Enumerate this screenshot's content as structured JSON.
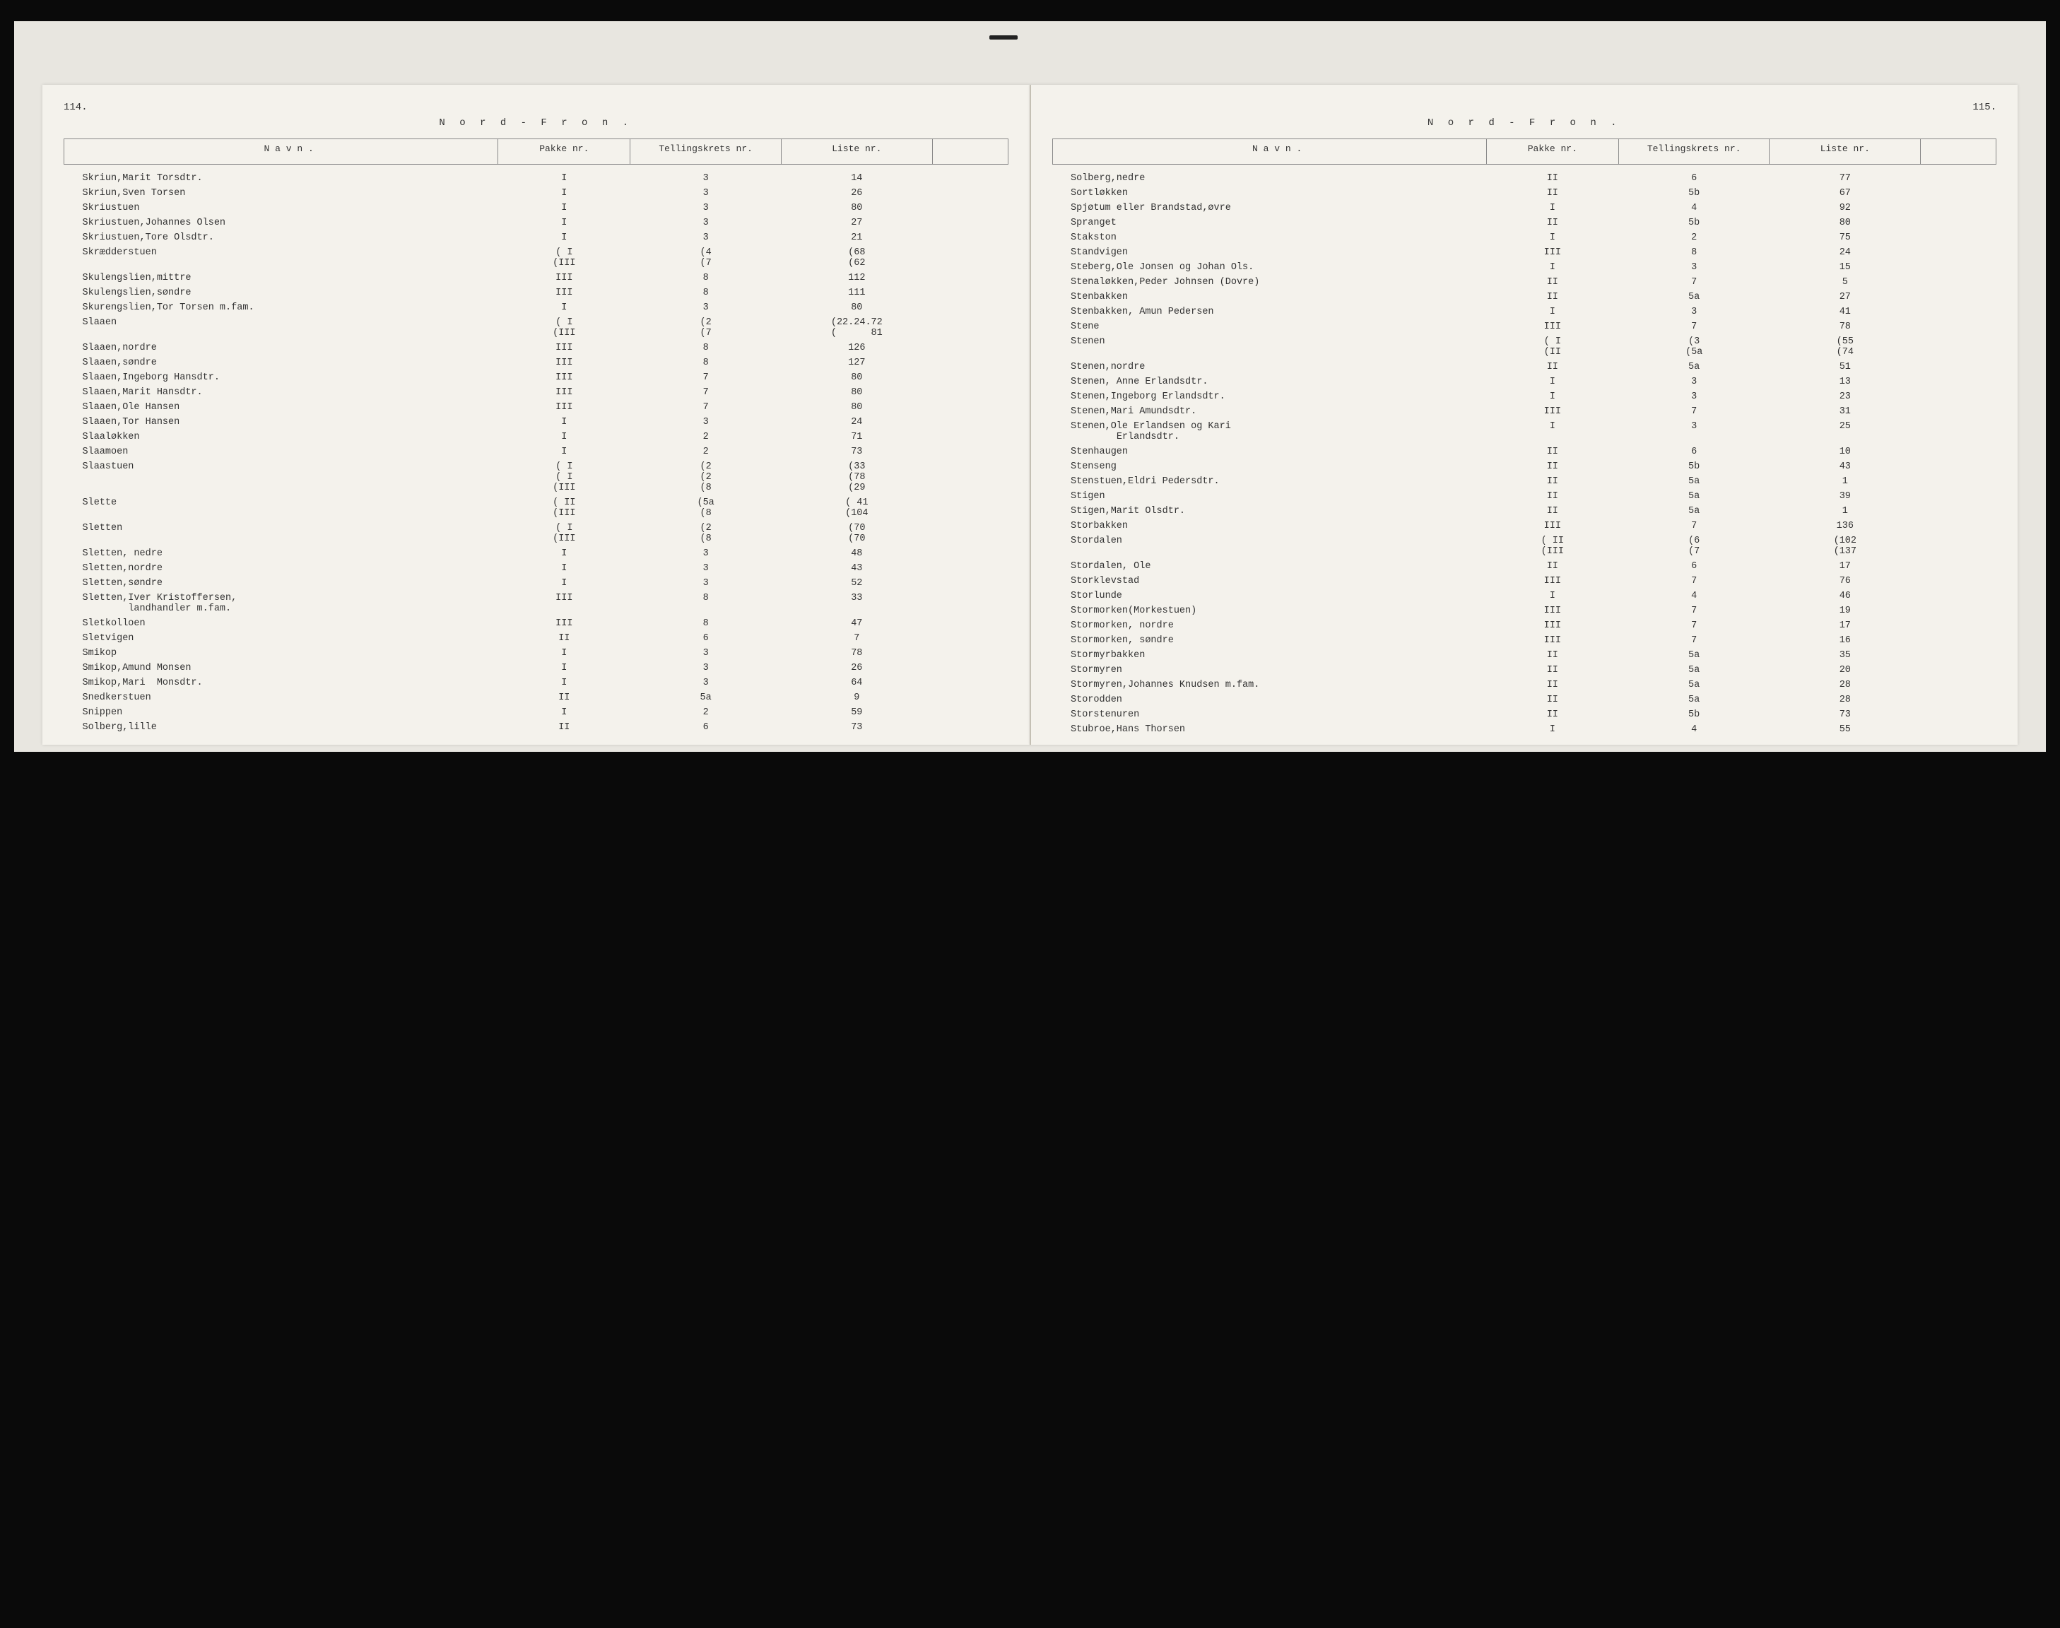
{
  "region_title": "N o r d - F r o n .",
  "headers": {
    "navn": "N a v n .",
    "pakke": "Pakke\nnr.",
    "krets": "Tellingskrets\nnr.",
    "liste": "Liste\nnr."
  },
  "left": {
    "page_number": "114.",
    "rows": [
      {
        "n": "Skriun,Marit Torsdtr.",
        "p": "I",
        "k": "3",
        "l": "14"
      },
      {
        "n": "Skriun,Sven Torsen",
        "p": "I",
        "k": "3",
        "l": "26"
      },
      {
        "n": "Skriustuen",
        "p": "I",
        "k": "3",
        "l": "80"
      },
      {
        "n": "Skriustuen,Johannes Olsen",
        "p": "I",
        "k": "3",
        "l": "27"
      },
      {
        "n": "Skriustuen,Tore Olsdtr.",
        "p": "I",
        "k": "3",
        "l": "21"
      },
      {
        "n": "Skrædderstuen",
        "p": "( I\n(III",
        "k": "(4\n(7",
        "l": "(68\n(62"
      },
      {
        "n": "Skulengslien,mittre",
        "p": "III",
        "k": "8",
        "l": "112"
      },
      {
        "n": "Skulengslien,søndre",
        "p": "III",
        "k": "8",
        "l": "111"
      },
      {
        "n": "Skurengslien,Tor Torsen m.fam.",
        "p": "I",
        "k": "3",
        "l": "80"
      },
      {
        "n": "Slaaen",
        "p": "( I\n(III",
        "k": "(2\n(7",
        "l": "(22.24.72\n(      81"
      },
      {
        "n": "Slaaen,nordre",
        "p": "III",
        "k": "8",
        "l": "126"
      },
      {
        "n": "Slaaen,søndre",
        "p": "III",
        "k": "8",
        "l": "127"
      },
      {
        "n": "Slaaen,Ingeborg Hansdtr.",
        "p": "III",
        "k": "7",
        "l": "80"
      },
      {
        "n": "Slaaen,Marit Hansdtr.",
        "p": "III",
        "k": "7",
        "l": "80"
      },
      {
        "n": "Slaaen,Ole Hansen",
        "p": "III",
        "k": "7",
        "l": "80"
      },
      {
        "n": "Slaaen,Tor Hansen",
        "p": "I",
        "k": "3",
        "l": "24"
      },
      {
        "n": "Slaaløkken",
        "p": "I",
        "k": "2",
        "l": "71"
      },
      {
        "n": "Slaamoen",
        "p": "I",
        "k": "2",
        "l": "73"
      },
      {
        "n": "Slaastuen",
        "p": "( I\n( I\n(III",
        "k": "(2\n(2\n(8",
        "l": "(33\n(78\n(29"
      },
      {
        "n": "Slette",
        "p": "( II\n(III",
        "k": "(5a\n(8",
        "l": "( 41\n(104"
      },
      {
        "n": "Sletten",
        "p": "( I\n(III",
        "k": "(2\n(8",
        "l": "(70\n(70"
      },
      {
        "n": "Sletten, nedre",
        "p": "I",
        "k": "3",
        "l": "48"
      },
      {
        "n": "Sletten,nordre",
        "p": "I",
        "k": "3",
        "l": "43"
      },
      {
        "n": "Sletten,søndre",
        "p": "I",
        "k": "3",
        "l": "52"
      },
      {
        "n": "Sletten,Iver Kristoffersen,\n        landhandler m.fam.",
        "p": "III",
        "k": "8",
        "l": "33"
      },
      {
        "n": "Sletkolloen",
        "p": "III",
        "k": "8",
        "l": "47"
      },
      {
        "n": "Sletvigen",
        "p": "II",
        "k": "6",
        "l": "7"
      },
      {
        "n": "Smikop",
        "p": "I",
        "k": "3",
        "l": "78"
      },
      {
        "n": "Smikop,Amund Monsen",
        "p": "I",
        "k": "3",
        "l": "26"
      },
      {
        "n": "Smikop,Mari  Monsdtr.",
        "p": "I",
        "k": "3",
        "l": "64"
      },
      {
        "n": "Snedkerstuen",
        "p": "II",
        "k": "5a",
        "l": "9"
      },
      {
        "n": "Snippen",
        "p": "I",
        "k": "2",
        "l": "59"
      },
      {
        "n": "Solberg,lille",
        "p": "II",
        "k": "6",
        "l": "73"
      }
    ]
  },
  "right": {
    "page_number": "115.",
    "rows": [
      {
        "n": "Solberg,nedre",
        "p": "II",
        "k": "6",
        "l": "77"
      },
      {
        "n": "Sortløkken",
        "p": "II",
        "k": "5b",
        "l": "67"
      },
      {
        "n": "Spjøtum eller Brandstad,øvre",
        "p": "I",
        "k": "4",
        "l": "92"
      },
      {
        "n": "Spranget",
        "p": "II",
        "k": "5b",
        "l": "80"
      },
      {
        "n": "Stakston",
        "p": "I",
        "k": "2",
        "l": "75"
      },
      {
        "n": "Standvigen",
        "p": "III",
        "k": "8",
        "l": "24"
      },
      {
        "n": "Steberg,Ole Jonsen og Johan Ols.",
        "p": "I",
        "k": "3",
        "l": "15"
      },
      {
        "n": "Stenaløkken,Peder Johnsen (Dovre)",
        "p": "II",
        "k": "7",
        "l": "5"
      },
      {
        "n": "Stenbakken",
        "p": "II",
        "k": "5a",
        "l": "27"
      },
      {
        "n": "Stenbakken, Amun Pedersen",
        "p": "I",
        "k": "3",
        "l": "41"
      },
      {
        "n": "Stene",
        "p": "III",
        "k": "7",
        "l": "78"
      },
      {
        "n": "Stenen",
        "p": "( I\n(II",
        "k": "(3\n(5a",
        "l": "(55\n(74"
      },
      {
        "n": "Stenen,nordre",
        "p": "II",
        "k": "5a",
        "l": "51"
      },
      {
        "n": "Stenen, Anne Erlandsdtr.",
        "p": "I",
        "k": "3",
        "l": "13"
      },
      {
        "n": "Stenen,Ingeborg Erlandsdtr.",
        "p": "I",
        "k": "3",
        "l": "23"
      },
      {
        "n": "Stenen,Mari Amundsdtr.",
        "p": "III",
        "k": "7",
        "l": "31"
      },
      {
        "n": "Stenen,Ole Erlandsen og Kari\n        Erlandsdtr.",
        "p": "I",
        "k": "3",
        "l": "25"
      },
      {
        "n": "Stenhaugen",
        "p": "II",
        "k": "6",
        "l": "10"
      },
      {
        "n": "Stenseng",
        "p": "II",
        "k": "5b",
        "l": "43"
      },
      {
        "n": "Stenstuen,Eldri Pedersdtr.",
        "p": "II",
        "k": "5a",
        "l": "1"
      },
      {
        "n": "Stigen",
        "p": "II",
        "k": "5a",
        "l": "39"
      },
      {
        "n": "Stigen,Marit Olsdtr.",
        "p": "II",
        "k": "5a",
        "l": "1"
      },
      {
        "n": "Storbakken",
        "p": "III",
        "k": "7",
        "l": "136"
      },
      {
        "n": "Stordalen",
        "p": "( II\n(III",
        "k": "(6\n(7",
        "l": "(102\n(137"
      },
      {
        "n": "Stordalen, Ole",
        "p": "II",
        "k": "6",
        "l": "17"
      },
      {
        "n": "Storklevstad",
        "p": "III",
        "k": "7",
        "l": "76"
      },
      {
        "n": "Storlunde",
        "p": "I",
        "k": "4",
        "l": "46"
      },
      {
        "n": "Stormorken(Morkestuen)",
        "p": "III",
        "k": "7",
        "l": "19"
      },
      {
        "n": "Stormorken, nordre",
        "p": "III",
        "k": "7",
        "l": "17"
      },
      {
        "n": "Stormorken, søndre",
        "p": "III",
        "k": "7",
        "l": "16"
      },
      {
        "n": "Stormyrbakken",
        "p": "II",
        "k": "5a",
        "l": "35"
      },
      {
        "n": "Stormyren",
        "p": "II",
        "k": "5a",
        "l": "20"
      },
      {
        "n": "Stormyren,Johannes Knudsen m.fam.",
        "p": "II",
        "k": "5a",
        "l": "28"
      },
      {
        "n": "Storodden",
        "p": "II",
        "k": "5a",
        "l": "28"
      },
      {
        "n": "Storstenuren",
        "p": "II",
        "k": "5b",
        "l": "73"
      },
      {
        "n": "Stubroe,Hans Thorsen",
        "p": "I",
        "k": "4",
        "l": "55"
      }
    ]
  }
}
